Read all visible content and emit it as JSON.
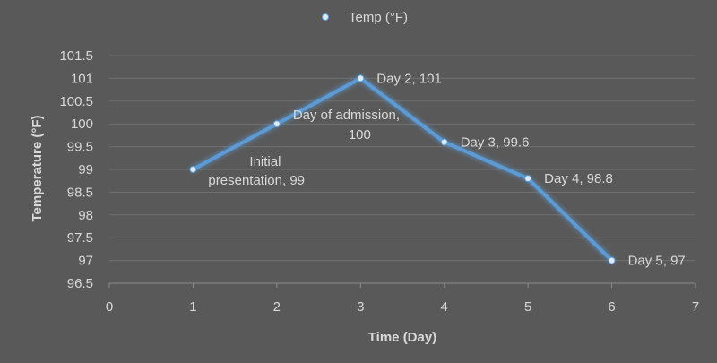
{
  "chart_data": {
    "type": "scatter",
    "title": "",
    "xlabel": "Time (Day)",
    "ylabel": "Temperature (°F)",
    "xlim": [
      0,
      7
    ],
    "ylim": [
      96.5,
      101.5
    ],
    "x_ticks": [
      "0",
      "1",
      "2",
      "3",
      "4",
      "5",
      "6",
      "7"
    ],
    "y_ticks": [
      "96.5",
      "97",
      "97.5",
      "98",
      "98.5",
      "99",
      "99.5",
      "100",
      "100.5",
      "101",
      "101.5"
    ],
    "grid": "horizontal",
    "legend": "top",
    "series": [
      {
        "name": "Temp (°F)",
        "color": "#5b9bd5",
        "x": [
          1,
          2,
          3,
          4,
          5,
          6
        ],
        "y": [
          99,
          100,
          101,
          99.6,
          98.8,
          97
        ],
        "labels": [
          [
            "Initial",
            "presentation, 99"
          ],
          [
            "Day of admission,",
            "100"
          ],
          [
            "Day 2, 101"
          ],
          [
            "Day 3, 99.6"
          ],
          [
            "Day 4, 98.8"
          ],
          [
            "Day 5, 97"
          ]
        ]
      }
    ]
  }
}
